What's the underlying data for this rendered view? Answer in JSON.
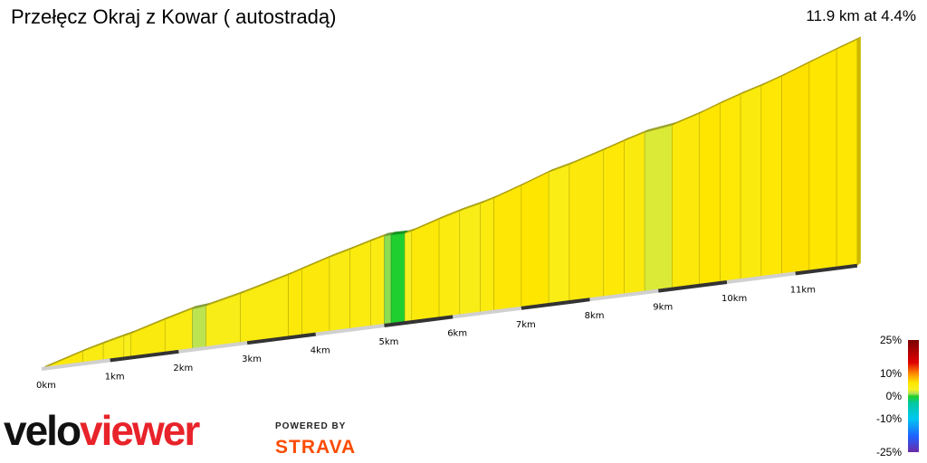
{
  "header": {
    "title": "Przełęcz Okraj z Kowar ( autostradą)",
    "summary": "11.9 km at 4.4%"
  },
  "chart_data": {
    "type": "area",
    "title": "Przełęcz Okraj z Kowar ( autostradą)",
    "distance_km": 11.9,
    "avg_gradient_pct": 4.4,
    "x_ticks": [
      "0km",
      "1km",
      "2km",
      "3km",
      "4km",
      "5km",
      "6km",
      "7km",
      "8km",
      "9km",
      "10km",
      "11km"
    ],
    "segments": [
      {
        "end_km": 0.6,
        "gradient_pct": 5.0
      },
      {
        "end_km": 0.9,
        "gradient_pct": 4.3
      },
      {
        "end_km": 1.2,
        "gradient_pct": 4.0
      },
      {
        "end_km": 1.3,
        "gradient_pct": 3.5
      },
      {
        "end_km": 1.8,
        "gradient_pct": 4.8
      },
      {
        "end_km": 2.2,
        "gradient_pct": 4.4
      },
      {
        "end_km": 2.4,
        "gradient_pct": 1.5
      },
      {
        "end_km": 2.9,
        "gradient_pct": 3.8
      },
      {
        "end_km": 3.6,
        "gradient_pct": 4.4
      },
      {
        "end_km": 3.8,
        "gradient_pct": 5.2
      },
      {
        "end_km": 4.2,
        "gradient_pct": 5.0
      },
      {
        "end_km": 4.5,
        "gradient_pct": 4.3
      },
      {
        "end_km": 4.8,
        "gradient_pct": 4.6
      },
      {
        "end_km": 5.0,
        "gradient_pct": 4.2
      },
      {
        "end_km": 5.1,
        "gradient_pct": 0.8
      },
      {
        "end_km": 5.3,
        "gradient_pct": -0.3
      },
      {
        "end_km": 5.4,
        "gradient_pct": 3.0
      },
      {
        "end_km": 5.8,
        "gradient_pct": 5.2
      },
      {
        "end_km": 6.1,
        "gradient_pct": 4.6
      },
      {
        "end_km": 6.4,
        "gradient_pct": 3.8
      },
      {
        "end_km": 6.6,
        "gradient_pct": 4.6
      },
      {
        "end_km": 7.0,
        "gradient_pct": 5.6
      },
      {
        "end_km": 7.4,
        "gradient_pct": 6.0
      },
      {
        "end_km": 7.7,
        "gradient_pct": 4.0
      },
      {
        "end_km": 8.2,
        "gradient_pct": 5.0
      },
      {
        "end_km": 8.5,
        "gradient_pct": 5.3
      },
      {
        "end_km": 8.8,
        "gradient_pct": 4.8
      },
      {
        "end_km": 9.2,
        "gradient_pct": 2.3
      },
      {
        "end_km": 9.6,
        "gradient_pct": 5.0
      },
      {
        "end_km": 9.9,
        "gradient_pct": 6.0
      },
      {
        "end_km": 10.2,
        "gradient_pct": 5.4
      },
      {
        "end_km": 10.5,
        "gradient_pct": 4.8
      },
      {
        "end_km": 10.8,
        "gradient_pct": 5.6
      },
      {
        "end_km": 11.2,
        "gradient_pct": 6.2
      },
      {
        "end_km": 11.6,
        "gradient_pct": 6.0
      },
      {
        "end_km": 11.9,
        "gradient_pct": 5.8
      }
    ],
    "color_scale": {
      "labels": [
        "25%",
        "10%",
        "0%",
        "-10%",
        "-25%"
      ],
      "stops": [
        {
          "pct": 25,
          "color": "#7a0000"
        },
        {
          "pct": 15,
          "color": "#e00000"
        },
        {
          "pct": 10,
          "color": "#ff8a00"
        },
        {
          "pct": 6,
          "color": "#ffe600"
        },
        {
          "pct": 3,
          "color": "#f6f020"
        },
        {
          "pct": 1,
          "color": "#a8e060"
        },
        {
          "pct": 0,
          "color": "#22d022"
        },
        {
          "pct": -3,
          "color": "#00c8a0"
        },
        {
          "pct": -10,
          "color": "#00c8f0"
        },
        {
          "pct": -18,
          "color": "#2060ff"
        },
        {
          "pct": -25,
          "color": "#6a2aa8"
        }
      ]
    }
  },
  "branding": {
    "logo_part1": "velo",
    "logo_part2": "viewer",
    "logo_color1": "#111111",
    "logo_color2": "#e8232a",
    "powered_by": "POWERED BY",
    "strava": "STRAVA"
  }
}
